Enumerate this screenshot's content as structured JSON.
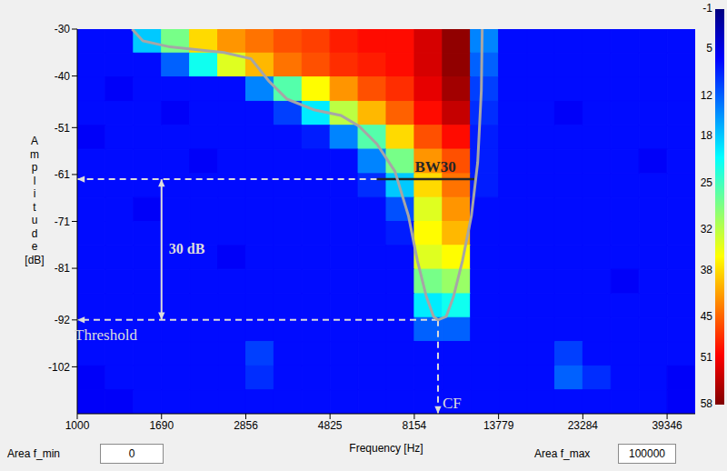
{
  "chart_data": {
    "type": "heatmap",
    "x_label": "Frequency [Hz]",
    "y_label": "Amplitude [dB]",
    "log": "x",
    "xlim": [
      1000,
      46866
    ],
    "xticks": [
      1000,
      1690,
      2856,
      4825,
      8154,
      13779,
      23284,
      39346
    ],
    "ylim": [
      -112,
      -30
    ],
    "yticks": [
      -30,
      -40,
      -51,
      -61,
      -71,
      -81,
      -92,
      -102
    ],
    "x_edges": [
      1000,
      1191,
      1419,
      1690,
      2013,
      2398,
      2856,
      3402,
      4052,
      4825,
      5747,
      6845,
      8154,
      9711,
      11567,
      13779,
      16411,
      19548,
      23284,
      27732,
      33033,
      39346,
      46866
    ],
    "y_edges": [
      -30,
      -35.1,
      -40.2,
      -45.4,
      -50.5,
      -55.6,
      -60.8,
      -65.9,
      -71,
      -76.1,
      -81.2,
      -86.4,
      -91.5,
      -96.6,
      -101.8,
      -106.9,
      -112
    ],
    "cells": [
      [
        7,
        7,
        18,
        28,
        38,
        42,
        44,
        46,
        47,
        49,
        50,
        50,
        53,
        57,
        14,
        7,
        7,
        7,
        7,
        7,
        7,
        7
      ],
      [
        7,
        7,
        7,
        12,
        22,
        34,
        40,
        44,
        46,
        48,
        49,
        50,
        53,
        57,
        12,
        7,
        7,
        7,
        7,
        7,
        7,
        7
      ],
      [
        7,
        6,
        7,
        7,
        7,
        7,
        14,
        26,
        36,
        42,
        46,
        48,
        52,
        56,
        10,
        7,
        7,
        7,
        7,
        7,
        7,
        7
      ],
      [
        7,
        7,
        7,
        6,
        7,
        7,
        7,
        10,
        20,
        32,
        40,
        45,
        50,
        54,
        9,
        7,
        7,
        6,
        7,
        7,
        7,
        7
      ],
      [
        6,
        7,
        7,
        7,
        7,
        7,
        7,
        7,
        8,
        14,
        26,
        38,
        46,
        50,
        8,
        7,
        7,
        7,
        7,
        7,
        7,
        7
      ],
      [
        7,
        7,
        7,
        7,
        6,
        7,
        7,
        7,
        7,
        7,
        14,
        28,
        42,
        46,
        8,
        7,
        7,
        7,
        7,
        7,
        6,
        7
      ],
      [
        7,
        7,
        7,
        7,
        7,
        7,
        7,
        7,
        7,
        7,
        9,
        18,
        38,
        44,
        8,
        7,
        7,
        7,
        7,
        7,
        7,
        7
      ],
      [
        7,
        7,
        6,
        7,
        7,
        7,
        7,
        7,
        7,
        7,
        7,
        11,
        34,
        42,
        7,
        7,
        7,
        7,
        7,
        7,
        7,
        7
      ],
      [
        7,
        7,
        7,
        7,
        7,
        7,
        7,
        7,
        7,
        7,
        7,
        8,
        36,
        40,
        7,
        7,
        7,
        7,
        7,
        7,
        7,
        7
      ],
      [
        7,
        7,
        7,
        7,
        7,
        6,
        7,
        7,
        7,
        7,
        7,
        7,
        34,
        36,
        7,
        7,
        7,
        7,
        7,
        7,
        7,
        7
      ],
      [
        7,
        7,
        7,
        7,
        7,
        7,
        7,
        7,
        7,
        7,
        7,
        7,
        28,
        30,
        7,
        7,
        7,
        7,
        7,
        6,
        7,
        7
      ],
      [
        7,
        7,
        7,
        7,
        7,
        7,
        7,
        7,
        7,
        7,
        7,
        7,
        20,
        22,
        7,
        7,
        7,
        7,
        7,
        7,
        7,
        7
      ],
      [
        7,
        7,
        7,
        7,
        7,
        7,
        7,
        7,
        7,
        7,
        7,
        7,
        12,
        12,
        7,
        7,
        7,
        7,
        7,
        7,
        7,
        7
      ],
      [
        7,
        7,
        7,
        7,
        7,
        7,
        10,
        7,
        7,
        7,
        7,
        7,
        7,
        7,
        7,
        7,
        7,
        10,
        7,
        7,
        7,
        7
      ],
      [
        6,
        7,
        7,
        7,
        7,
        7,
        9,
        7,
        7,
        7,
        7,
        7,
        7,
        7,
        7,
        7,
        7,
        12,
        9,
        7,
        7,
        6
      ],
      [
        6,
        6,
        7,
        7,
        7,
        7,
        7,
        7,
        7,
        7,
        7,
        7,
        7,
        7,
        7,
        7,
        7,
        7,
        7,
        7,
        7,
        6
      ]
    ],
    "colorbar": {
      "range": [
        -1,
        58
      ],
      "ticks": [
        -1,
        5,
        12,
        18,
        25,
        32,
        38,
        45,
        51,
        58
      ]
    },
    "contour": {
      "color": "#a6a6a6",
      "x": [
        1407,
        1505,
        1781,
        2493,
        2949,
        3298,
        3689,
        4365,
        5164,
        5777,
        6462,
        7227,
        7862,
        8315,
        8794,
        9198,
        9450,
        9945,
        10402,
        11004,
        11636,
        12100,
        12379,
        12445
      ],
      "y": [
        -30,
        -32.5,
        -33.8,
        -35,
        -36.3,
        -41.1,
        -44.9,
        -47.2,
        -48.4,
        -50.7,
        -54.5,
        -60.3,
        -69.8,
        -79.4,
        -87.1,
        -91.3,
        -92,
        -91.3,
        -87.1,
        -79.4,
        -69.8,
        -58.4,
        -43,
        -30
      ]
    },
    "annotations": {
      "threshold": {
        "label": "Threshold",
        "value": -92
      },
      "cf": {
        "label": "CF",
        "value": 9450
      },
      "bw30": {
        "label": "BW30",
        "level": -62,
        "from": 6456,
        "to": 11970
      },
      "span": {
        "label": "30 dB",
        "from": -92,
        "to": -62,
        "x": 1690
      }
    },
    "controls": [
      {
        "label": "Area f_min",
        "value": 0
      },
      {
        "label": "Area f_max",
        "value": 100000
      }
    ]
  }
}
